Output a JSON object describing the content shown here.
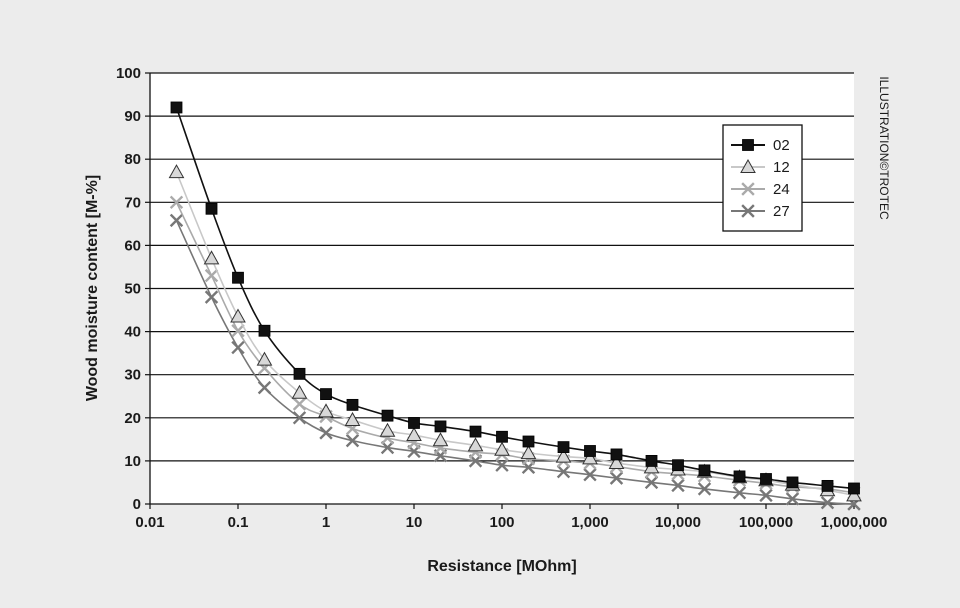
{
  "chart_data": {
    "type": "line",
    "title": "",
    "xlabel": "Resistance [MOhm]",
    "ylabel": "Wood moisture content [M-%]",
    "xscale": "log",
    "xlim": [
      0.01,
      1000000
    ],
    "ylim": [
      0,
      100
    ],
    "x_ticks": [
      "0.01",
      "0.1",
      "1",
      "10",
      "100",
      "1,000",
      "10,000",
      "100,000",
      "1,000,000"
    ],
    "y_ticks": [
      "0",
      "10",
      "20",
      "30",
      "40",
      "50",
      "60",
      "70",
      "80",
      "90",
      "100"
    ],
    "grid": "horizontal",
    "legend_position": "top-right",
    "x": [
      0.02,
      0.05,
      0.1,
      0.2,
      0.5,
      1,
      2,
      5,
      10,
      20,
      50,
      100,
      200,
      500,
      1000,
      2000,
      5000,
      10000,
      20000,
      50000,
      100000,
      200000,
      500000,
      1000000
    ],
    "series": [
      {
        "name": "02",
        "marker": "square",
        "color": "#111111",
        "values": [
          92,
          68.5,
          52.5,
          40.2,
          30.2,
          25.5,
          23,
          20.5,
          18.8,
          18,
          16.8,
          15.6,
          14.5,
          13.2,
          12.3,
          11.5,
          10,
          9,
          7.8,
          6.4,
          5.8,
          5,
          4.2,
          3.6
        ]
      },
      {
        "name": "12",
        "marker": "triangle",
        "color": "#d8d8d8",
        "values": [
          77,
          57,
          43.5,
          33.5,
          25.8,
          21.5,
          19.5,
          17,
          16,
          14.8,
          13.6,
          12.6,
          11.8,
          11,
          10.6,
          9.5,
          8.5,
          8,
          7.5,
          6.2,
          5.5,
          4.5,
          3.2,
          2
        ]
      },
      {
        "name": "24",
        "marker": "x",
        "color": "#aaaaaa",
        "values": [
          70,
          53,
          40.2,
          31.5,
          23.2,
          20.3,
          17.5,
          15.3,
          14.2,
          13,
          12,
          11.5,
          10.5,
          10,
          9.5,
          8.7,
          7.5,
          7,
          6.5,
          5.5,
          4.8,
          4,
          3.5,
          2.6
        ]
      },
      {
        "name": "27",
        "marker": "x",
        "color": "#777777",
        "values": [
          65.8,
          48,
          36.3,
          27,
          20,
          16.5,
          14.7,
          13.1,
          12.2,
          11.2,
          10,
          9,
          8.5,
          7.5,
          6.8,
          6,
          5,
          4.3,
          3.5,
          2.6,
          2,
          1.2,
          0.3,
          0
        ]
      }
    ],
    "credit": "ILLUSTRATION©TROTEC"
  }
}
